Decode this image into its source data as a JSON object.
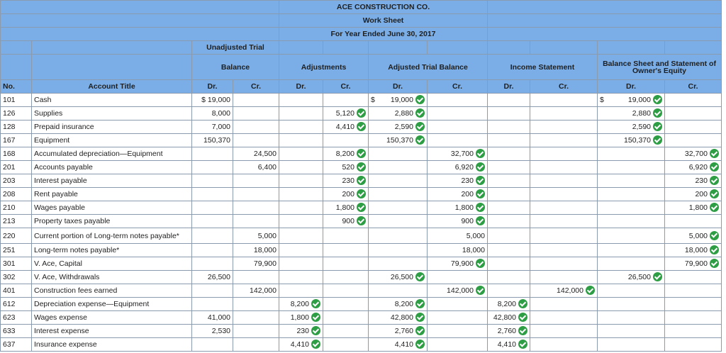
{
  "title": {
    "company": "ACE CONSTRUCTION CO.",
    "sheet": "Work Sheet",
    "period": "For Year Ended June 30, 2017"
  },
  "headers": {
    "unadjusted": "Unadjusted Trial",
    "balance": "Balance",
    "adjustments": "Adjustments",
    "adjusted": "Adjusted Trial Balance",
    "income": "Income Statement",
    "balance_sheet": "Balance Sheet and Statement of Owner's Equity",
    "no": "No.",
    "account_title": "Account Title",
    "dr": "Dr.",
    "cr": "Cr."
  },
  "currency": "$",
  "rows": [
    {
      "no": "101",
      "title": "Cash",
      "ud": "$ 19,000",
      "uc": "",
      "ad": "",
      "ac": "",
      "atd": "19,000",
      "atc": "",
      "isd": "",
      "isc": "",
      "bsd": "19,000",
      "bsc": ""
    },
    {
      "no": "126",
      "title": "Supplies",
      "ud": "8,000",
      "uc": "",
      "ad": "",
      "ac": "5,120",
      "atd": "2,880",
      "atc": "",
      "isd": "",
      "isc": "",
      "bsd": "2,880",
      "bsc": ""
    },
    {
      "no": "128",
      "title": "Prepaid insurance",
      "ud": "7,000",
      "uc": "",
      "ad": "",
      "ac": "4,410",
      "atd": "2,590",
      "atc": "",
      "isd": "",
      "isc": "",
      "bsd": "2,590",
      "bsc": ""
    },
    {
      "no": "167",
      "title": "Equipment",
      "ud": "150,370",
      "uc": "",
      "ad": "",
      "ac": "",
      "atd": "150,370",
      "atc": "",
      "isd": "",
      "isc": "",
      "bsd": "150,370",
      "bsc": ""
    },
    {
      "no": "168",
      "title": "Accumulated depreciation—Equipment",
      "ud": "",
      "uc": "24,500",
      "ad": "",
      "ac": "8,200",
      "atd": "",
      "atc": "32,700",
      "isd": "",
      "isc": "",
      "bsd": "",
      "bsc": "32,700"
    },
    {
      "no": "201",
      "title": "Accounts payable",
      "ud": "",
      "uc": "6,400",
      "ad": "",
      "ac": "520",
      "atd": "",
      "atc": "6,920",
      "isd": "",
      "isc": "",
      "bsd": "",
      "bsc": "6,920"
    },
    {
      "no": "203",
      "title": "Interest payable",
      "ud": "",
      "uc": "",
      "ad": "",
      "ac": "230",
      "atd": "",
      "atc": "230",
      "isd": "",
      "isc": "",
      "bsd": "",
      "bsc": "230"
    },
    {
      "no": "208",
      "title": "Rent payable",
      "ud": "",
      "uc": "",
      "ad": "",
      "ac": "200",
      "atd": "",
      "atc": "200",
      "isd": "",
      "isc": "",
      "bsd": "",
      "bsc": "200"
    },
    {
      "no": "210",
      "title": "Wages payable",
      "ud": "",
      "uc": "",
      "ad": "",
      "ac": "1,800",
      "atd": "",
      "atc": "1,800",
      "isd": "",
      "isc": "",
      "bsd": "",
      "bsc": "1,800"
    },
    {
      "no": "213",
      "title": "Property taxes payable",
      "ud": "",
      "uc": "",
      "ad": "",
      "ac": "900",
      "atd": "",
      "atc": "900",
      "isd": "",
      "isc": "",
      "bsd": "",
      "bsc": ""
    },
    {
      "no": "220",
      "title": "Current portion of Long-term notes payable*",
      "ud": "",
      "uc": "5,000",
      "ad": "",
      "ac": "",
      "atd": "",
      "atc": "5,000",
      "isd": "",
      "isc": "",
      "bsd": "",
      "bsc": "5,000"
    },
    {
      "no": "251",
      "title": "Long-term notes payable*",
      "ud": "",
      "uc": "18,000",
      "ad": "",
      "ac": "",
      "atd": "",
      "atc": "18,000",
      "isd": "",
      "isc": "",
      "bsd": "",
      "bsc": "18,000"
    },
    {
      "no": "301",
      "title": "V. Ace, Capital",
      "ud": "",
      "uc": "79,900",
      "ad": "",
      "ac": "",
      "atd": "",
      "atc": "79,900",
      "isd": "",
      "isc": "",
      "bsd": "",
      "bsc": "79,900"
    },
    {
      "no": "302",
      "title": "V. Ace, Withdrawals",
      "ud": "26,500",
      "uc": "",
      "ad": "",
      "ac": "",
      "atd": "26,500",
      "atc": "",
      "isd": "",
      "isc": "",
      "bsd": "26,500",
      "bsc": ""
    },
    {
      "no": "401",
      "title": "Construction fees earned",
      "ud": "",
      "uc": "142,000",
      "ad": "",
      "ac": "",
      "atd": "",
      "atc": "142,000",
      "isd": "",
      "isc": "142,000",
      "bsd": "",
      "bsc": ""
    },
    {
      "no": "612",
      "title": "Depreciation expense—Equipment",
      "ud": "",
      "uc": "",
      "ad": "8,200",
      "ac": "",
      "atd": "8,200",
      "atc": "",
      "isd": "8,200",
      "isc": "",
      "bsd": "",
      "bsc": ""
    },
    {
      "no": "623",
      "title": "Wages expense",
      "ud": "41,000",
      "uc": "",
      "ad": "1,800",
      "ac": "",
      "atd": "42,800",
      "atc": "",
      "isd": "42,800",
      "isc": "",
      "bsd": "",
      "bsc": ""
    },
    {
      "no": "633",
      "title": "Interest expense",
      "ud": "2,530",
      "uc": "",
      "ad": "230",
      "ac": "",
      "atd": "2,760",
      "atc": "",
      "isd": "2,760",
      "isc": "",
      "bsd": "",
      "bsc": ""
    },
    {
      "no": "637",
      "title": "Insurance expense",
      "ud": "",
      "uc": "",
      "ad": "4,410",
      "ac": "",
      "atd": "4,410",
      "atc": "",
      "isd": "4,410",
      "isc": "",
      "bsd": "",
      "bsc": ""
    }
  ],
  "checks": {
    "ad": [
      15,
      16,
      17,
      18
    ],
    "ac": [
      1,
      2,
      4,
      5,
      6,
      7,
      8,
      9
    ],
    "atd": [
      0,
      1,
      2,
      3,
      13,
      15,
      16,
      17,
      18
    ],
    "atc": [
      4,
      5,
      6,
      7,
      8,
      9,
      12,
      14
    ],
    "isd": [
      15,
      16,
      17,
      18
    ],
    "isc": [
      14
    ],
    "bsd": [
      0,
      1,
      2,
      3,
      13
    ],
    "bsc": [
      4,
      5,
      6,
      7,
      8,
      10,
      11,
      12
    ]
  },
  "colors": {
    "header": "#7baee6",
    "check": "#2e9e45",
    "grid": "#8a9bb0"
  }
}
